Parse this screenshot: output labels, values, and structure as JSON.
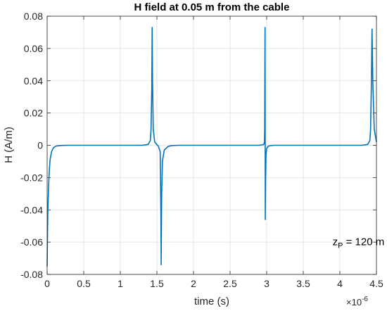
{
  "chart_data": {
    "type": "line",
    "title": "H field at 0.05 m from the cable",
    "xlabel": "time (s)",
    "ylabel": "H (A/m)",
    "x_exponent_label": "×10",
    "x_exponent_power": "-6",
    "xlim": [
      0,
      4.5
    ],
    "ylim": [
      -0.08,
      0.08
    ],
    "xticks": [
      0,
      0.5,
      1,
      1.5,
      2,
      2.5,
      3,
      3.5,
      4,
      4.5
    ],
    "xtick_labels": [
      "0",
      "0.5",
      "1",
      "1.5",
      "2",
      "2.5",
      "3",
      "3.5",
      "4",
      "4.5"
    ],
    "yticks": [
      -0.08,
      -0.06,
      -0.04,
      -0.02,
      0,
      0.02,
      0.04,
      0.06,
      0.08
    ],
    "ytick_labels": [
      "-0.08",
      "-0.06",
      "-0.04",
      "-0.02",
      "0",
      "0.02",
      "0.04",
      "0.06",
      "0.08"
    ],
    "grid": true,
    "line_color": "#0072BD",
    "annotation": {
      "main": "z",
      "sub": "P",
      "rest": " = 120 m",
      "x": 3.9,
      "y": -0.062
    },
    "series": [
      {
        "x": [
          0,
          0.005,
          0.01,
          0.02,
          0.03,
          0.04,
          0.06,
          0.08,
          0.1,
          0.13,
          0.2,
          0.3,
          1.3,
          1.38,
          1.41,
          1.42,
          1.43,
          1.435,
          1.44,
          1.45,
          1.47,
          1.5,
          1.52,
          1.545,
          1.555,
          1.558,
          1.565,
          1.575,
          1.6,
          1.65,
          1.7,
          1.8,
          2.9,
          2.96,
          2.97,
          2.973,
          2.976,
          2.978,
          2.981,
          2.985,
          2.99,
          3.0,
          3.02,
          3.05,
          3.1,
          3.2,
          4.3,
          4.38,
          4.41,
          4.42,
          4.43,
          4.44,
          4.45,
          4.47,
          4.5
        ],
        "y": [
          -0.075,
          -0.055,
          -0.04,
          -0.025,
          -0.015,
          -0.009,
          -0.004,
          -0.002,
          -0.001,
          -0.0004,
          -0.0001,
          0,
          0,
          0.0005,
          0.003,
          0.01,
          0.035,
          0.073,
          0.04,
          0.01,
          0.002,
          0.0004,
          -0.0005,
          -0.004,
          -0.045,
          -0.074,
          -0.03,
          -0.01,
          -0.003,
          -0.0008,
          -0.0002,
          0,
          0,
          0.0005,
          0.002,
          0.01,
          0.05,
          0.073,
          -0.046,
          -0.02,
          -0.006,
          -0.002,
          -0.0006,
          -0.0002,
          0,
          0,
          0,
          0.0005,
          0.003,
          0.01,
          0.035,
          0.072,
          0.04,
          0.01,
          0.002
        ]
      }
    ]
  }
}
